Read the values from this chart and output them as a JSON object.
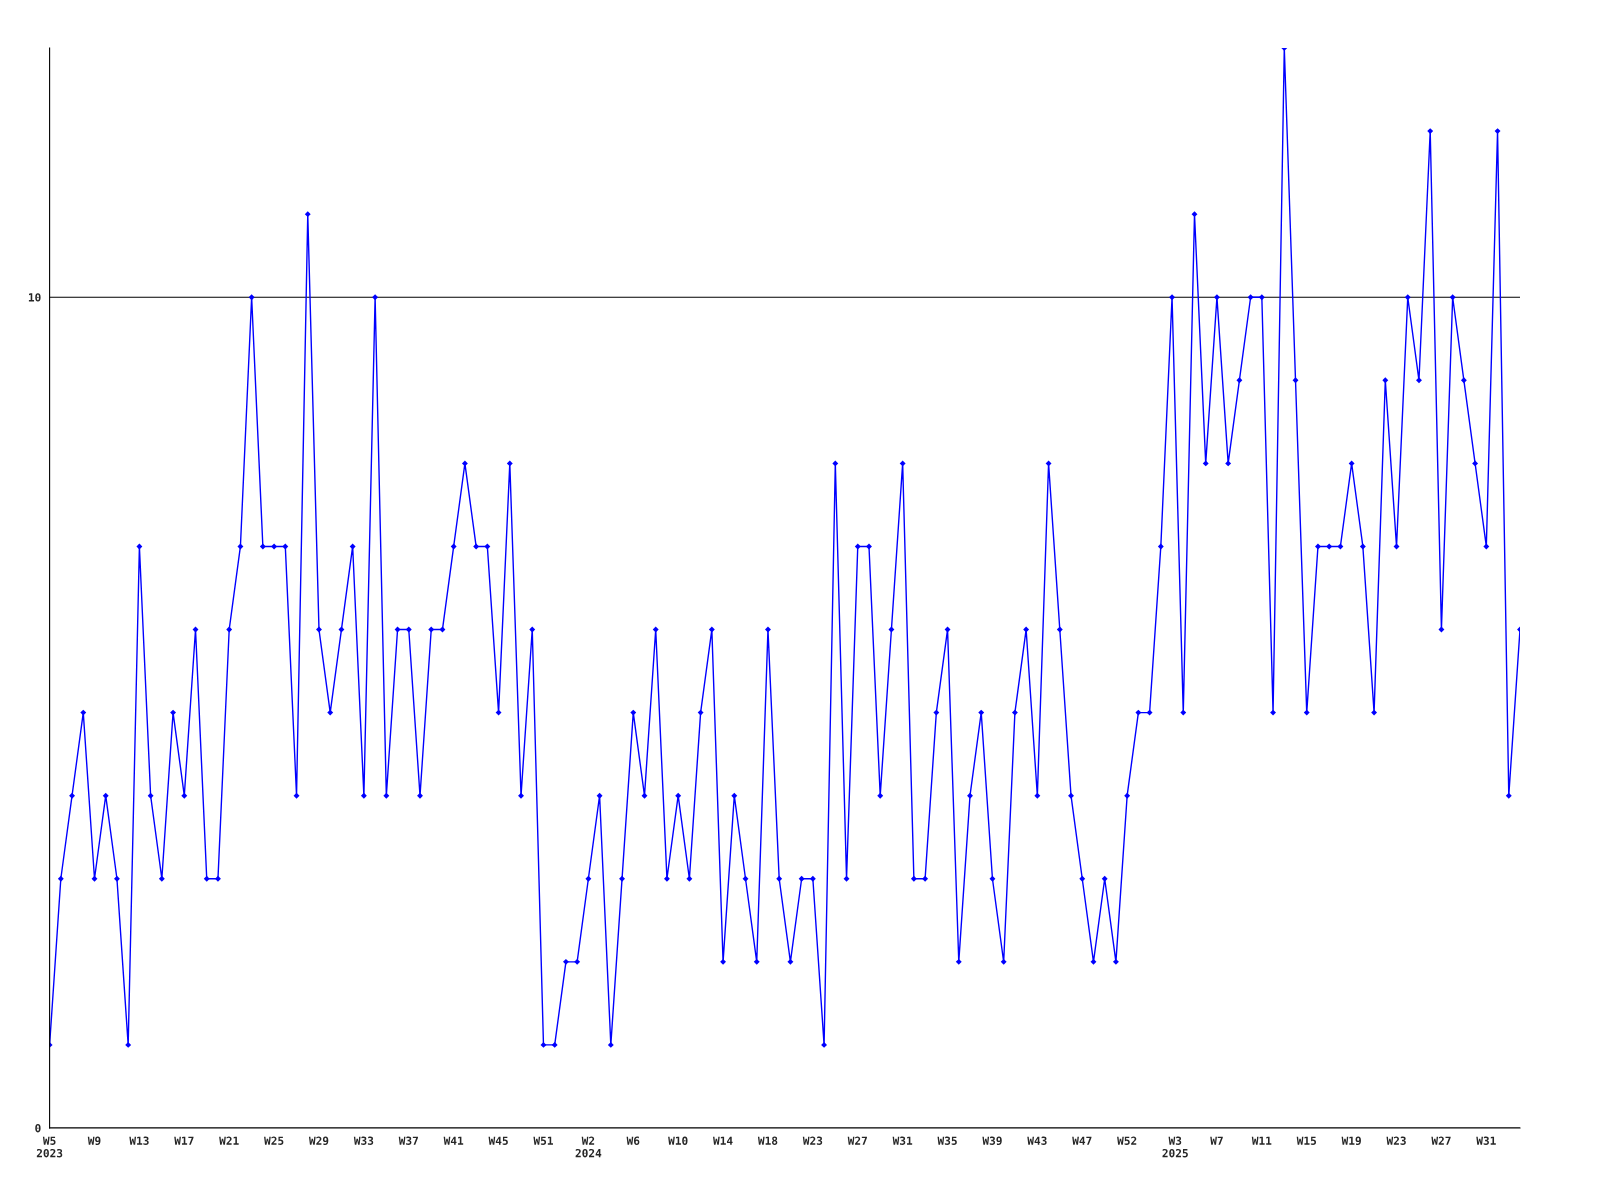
{
  "chart_data": {
    "type": "line",
    "x": [
      "2023-01-30",
      "2023-02-06",
      "2023-02-13",
      "2023-02-20",
      "2023-02-27",
      "2023-03-06",
      "2023-03-13",
      "2023-03-20",
      "2023-03-27",
      "2023-04-03",
      "2023-04-10",
      "2023-04-17",
      "2023-04-24",
      "2023-05-01",
      "2023-05-08",
      "2023-05-15",
      "2023-05-22",
      "2023-05-29",
      "2023-06-05",
      "2023-06-12",
      "2023-06-19",
      "2023-06-26",
      "2023-07-03",
      "2023-07-10",
      "2023-07-17",
      "2023-07-24",
      "2023-07-31",
      "2023-08-07",
      "2023-08-14",
      "2023-08-21",
      "2023-08-28",
      "2023-09-04",
      "2023-09-11",
      "2023-09-18",
      "2023-09-25",
      "2023-10-02",
      "2023-10-09",
      "2023-10-16",
      "2023-10-23",
      "2023-10-30",
      "2023-11-06",
      "2023-11-13",
      "2023-11-20",
      "2023-11-27",
      "2023-12-04",
      "2023-12-11",
      "2023-12-18",
      "2023-12-25",
      "2024-01-01",
      "2024-01-08",
      "2024-01-15",
      "2024-01-22",
      "2024-01-29",
      "2024-02-05",
      "2024-02-12",
      "2024-02-19",
      "2024-02-26",
      "2024-03-04",
      "2024-03-11",
      "2024-03-18",
      "2024-03-25",
      "2024-04-01",
      "2024-04-08",
      "2024-04-15",
      "2024-04-22",
      "2024-04-29",
      "2024-05-06",
      "2024-05-13",
      "2024-05-20",
      "2024-05-27",
      "2024-06-03",
      "2024-06-10",
      "2024-06-17",
      "2024-06-24",
      "2024-07-01",
      "2024-07-08",
      "2024-07-15",
      "2024-07-22",
      "2024-07-29",
      "2024-08-05",
      "2024-08-12",
      "2024-08-19",
      "2024-08-26",
      "2024-09-02",
      "2024-09-09",
      "2024-09-16",
      "2024-09-23",
      "2024-09-30",
      "2024-10-07",
      "2024-10-14",
      "2024-10-21",
      "2024-10-28",
      "2024-11-04",
      "2024-11-11",
      "2024-11-18",
      "2024-11-25",
      "2024-12-02",
      "2024-12-09",
      "2024-12-16",
      "2024-12-23",
      "2024-12-30",
      "2025-01-06",
      "2025-01-13",
      "2025-01-20",
      "2025-01-27",
      "2025-02-03",
      "2025-02-10",
      "2025-02-17",
      "2025-02-24",
      "2025-03-03",
      "2025-03-10",
      "2025-03-17",
      "2025-03-24",
      "2025-03-31",
      "2025-04-07",
      "2025-04-14",
      "2025-04-21",
      "2025-04-28",
      "2025-05-05",
      "2025-05-12",
      "2025-05-19",
      "2025-05-26",
      "2025-06-02",
      "2025-06-09",
      "2025-06-16",
      "2025-06-23",
      "2025-06-30",
      "2025-07-07",
      "2025-07-14",
      "2025-07-21",
      "2025-07-28",
      "2025-08-04"
    ],
    "series": [
      {
        "color": "#0000ff",
        "values": [
          1,
          3,
          4,
          5,
          3,
          4,
          3,
          1,
          7,
          4,
          3,
          5,
          4,
          6,
          3,
          3,
          6,
          7,
          10,
          7,
          7,
          7,
          4,
          11,
          6,
          5,
          6,
          7,
          4,
          10,
          4,
          6,
          6,
          4,
          6,
          6,
          7,
          8,
          7,
          7,
          5,
          8,
          4,
          6,
          1,
          1,
          2,
          2,
          3,
          4,
          1,
          3,
          5,
          4,
          6,
          3,
          4,
          3,
          5,
          6,
          2,
          4,
          3,
          2,
          6,
          3,
          2,
          3,
          3,
          1,
          8,
          3,
          7,
          7,
          4,
          6,
          8,
          3,
          3,
          5,
          6,
          2,
          4,
          5,
          3,
          2,
          5,
          6,
          4,
          8,
          6,
          4,
          3,
          2,
          3,
          2,
          4,
          5,
          5,
          7,
          10,
          5,
          11,
          8,
          10,
          8,
          9,
          10,
          10,
          5,
          13,
          9,
          5,
          7,
          7,
          7,
          8,
          7,
          5,
          9,
          7,
          10,
          9,
          12,
          6,
          10,
          9,
          8,
          7,
          12,
          4,
          6
        ]
      }
    ],
    "xlim": [
      "2023-01-30",
      "2025-08-04"
    ],
    "xticks": [
      {
        "value": "2023-01-30",
        "label": "W5\n2023"
      },
      {
        "value": "2023-02-27",
        "label": "W9"
      },
      {
        "value": "2023-03-27",
        "label": "W13"
      },
      {
        "value": "2023-04-24",
        "label": "W17"
      },
      {
        "value": "2023-05-22",
        "label": "W21"
      },
      {
        "value": "2023-06-19",
        "label": "W25"
      },
      {
        "value": "2023-07-17",
        "label": "W29"
      },
      {
        "value": "2023-08-14",
        "label": "W33"
      },
      {
        "value": "2023-09-11",
        "label": "W37"
      },
      {
        "value": "2023-10-09",
        "label": "W41"
      },
      {
        "value": "2023-11-06",
        "label": "W45"
      },
      {
        "value": "2023-12-04",
        "label": "W51"
      },
      {
        "value": "2024-01-01",
        "label": "W2\n2024"
      },
      {
        "value": "2024-01-29",
        "label": "W6"
      },
      {
        "value": "2024-02-26",
        "label": "W10"
      },
      {
        "value": "2024-03-25",
        "label": "W14"
      },
      {
        "value": "2024-04-22",
        "label": "W18"
      },
      {
        "value": "2024-05-20",
        "label": "W23"
      },
      {
        "value": "2024-06-17",
        "label": "W27"
      },
      {
        "value": "2024-07-15",
        "label": "W31"
      },
      {
        "value": "2024-08-12",
        "label": "W35"
      },
      {
        "value": "2024-09-09",
        "label": "W39"
      },
      {
        "value": "2024-10-07",
        "label": "W43"
      },
      {
        "value": "2024-11-04",
        "label": "W47"
      },
      {
        "value": "2024-12-02",
        "label": "W52"
      },
      {
        "value": "2025-01-01",
        "label": "W3\n2025"
      },
      {
        "value": "2025-01-27",
        "label": "W7"
      },
      {
        "value": "2025-02-24",
        "label": "W11"
      },
      {
        "value": "2025-03-24",
        "label": "W15"
      },
      {
        "value": "2025-04-21",
        "label": "W19"
      },
      {
        "value": "2025-05-19",
        "label": "W23"
      },
      {
        "value": "2025-06-16",
        "label": "W27"
      },
      {
        "value": "2025-07-14",
        "label": "W31"
      }
    ],
    "ylim": [
      0,
      13
    ],
    "yticks": [
      0,
      10
    ],
    "grid": "y",
    "legend": false,
    "marker": "diamond",
    "line_style": "solid"
  }
}
